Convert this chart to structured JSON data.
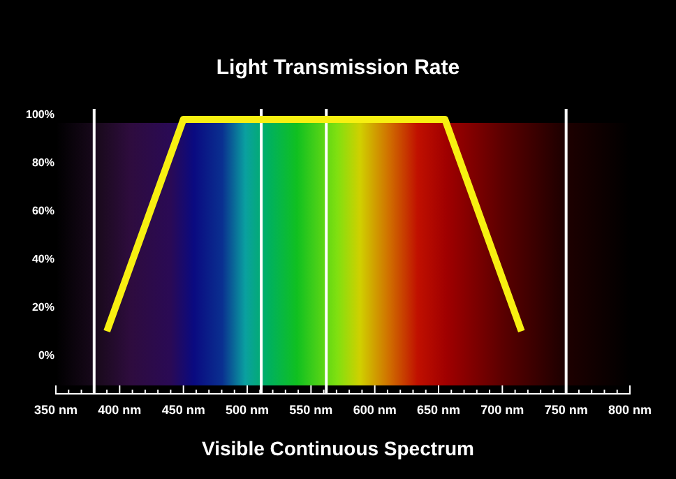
{
  "chart_data": {
    "type": "line",
    "subtitle": "Light Transmission Rate",
    "xlabel": "Visible Continuous Spectrum",
    "series": [
      {
        "color": "#f7f011",
        "x": [
          390,
          450,
          655,
          715
        ],
        "values": [
          10,
          98,
          98,
          10
        ]
      }
    ],
    "xlim": [
      350,
      800
    ],
    "xticks": [
      {
        "value": 350,
        "label": "350 nm"
      },
      {
        "value": 360,
        "label": null
      },
      {
        "value": 370,
        "label": null
      },
      {
        "value": 380,
        "label": null
      },
      {
        "value": 390,
        "label": null
      },
      {
        "value": 400,
        "label": "400 nm"
      },
      {
        "value": 410,
        "label": null
      },
      {
        "value": 420,
        "label": null
      },
      {
        "value": 430,
        "label": null
      },
      {
        "value": 440,
        "label": null
      },
      {
        "value": 450,
        "label": "450 nm"
      },
      {
        "value": 460,
        "label": null
      },
      {
        "value": 470,
        "label": null
      },
      {
        "value": 480,
        "label": null
      },
      {
        "value": 490,
        "label": null
      },
      {
        "value": 500,
        "label": "500 nm"
      },
      {
        "value": 510,
        "label": null
      },
      {
        "value": 520,
        "label": null
      },
      {
        "value": 530,
        "label": null
      },
      {
        "value": 540,
        "label": null
      },
      {
        "value": 550,
        "label": "550 nm"
      },
      {
        "value": 560,
        "label": null
      },
      {
        "value": 570,
        "label": null
      },
      {
        "value": 580,
        "label": null
      },
      {
        "value": 590,
        "label": null
      },
      {
        "value": 600,
        "label": "600 nm"
      },
      {
        "value": 610,
        "label": null
      },
      {
        "value": 620,
        "label": null
      },
      {
        "value": 630,
        "label": null
      },
      {
        "value": 640,
        "label": null
      },
      {
        "value": 650,
        "label": "650 nm"
      },
      {
        "value": 660,
        "label": null
      },
      {
        "value": 670,
        "label": null
      },
      {
        "value": 680,
        "label": null
      },
      {
        "value": 690,
        "label": null
      },
      {
        "value": 700,
        "label": "700 nm"
      },
      {
        "value": 710,
        "label": null
      },
      {
        "value": 720,
        "label": null
      },
      {
        "value": 730,
        "label": null
      },
      {
        "value": 740,
        "label": null
      },
      {
        "value": 750,
        "label": "750 nm"
      },
      {
        "value": 760,
        "label": null
      },
      {
        "value": 770,
        "label": null
      },
      {
        "value": 780,
        "label": null
      },
      {
        "value": 790,
        "label": null
      },
      {
        "value": 800,
        "label": "800 nm"
      }
    ],
    "ylim": [
      -16,
      100
    ],
    "yticks": [
      {
        "value": 0,
        "label": "0%"
      },
      {
        "value": 20,
        "label": "20%"
      },
      {
        "value": 40,
        "label": "40%"
      },
      {
        "value": 60,
        "label": "60%"
      },
      {
        "value": 80,
        "label": "80%"
      },
      {
        "value": 100,
        "label": "100%"
      }
    ],
    "ref_lines": [
      {
        "axis": "x",
        "value": 380,
        "color": "#ffffff"
      },
      {
        "axis": "x",
        "value": 511,
        "color": "#ffffff"
      },
      {
        "axis": "x",
        "value": 562,
        "color": "#ffffff"
      },
      {
        "axis": "x",
        "value": 750,
        "color": "#ffffff"
      }
    ],
    "marker": "none",
    "line_style": "solid"
  }
}
